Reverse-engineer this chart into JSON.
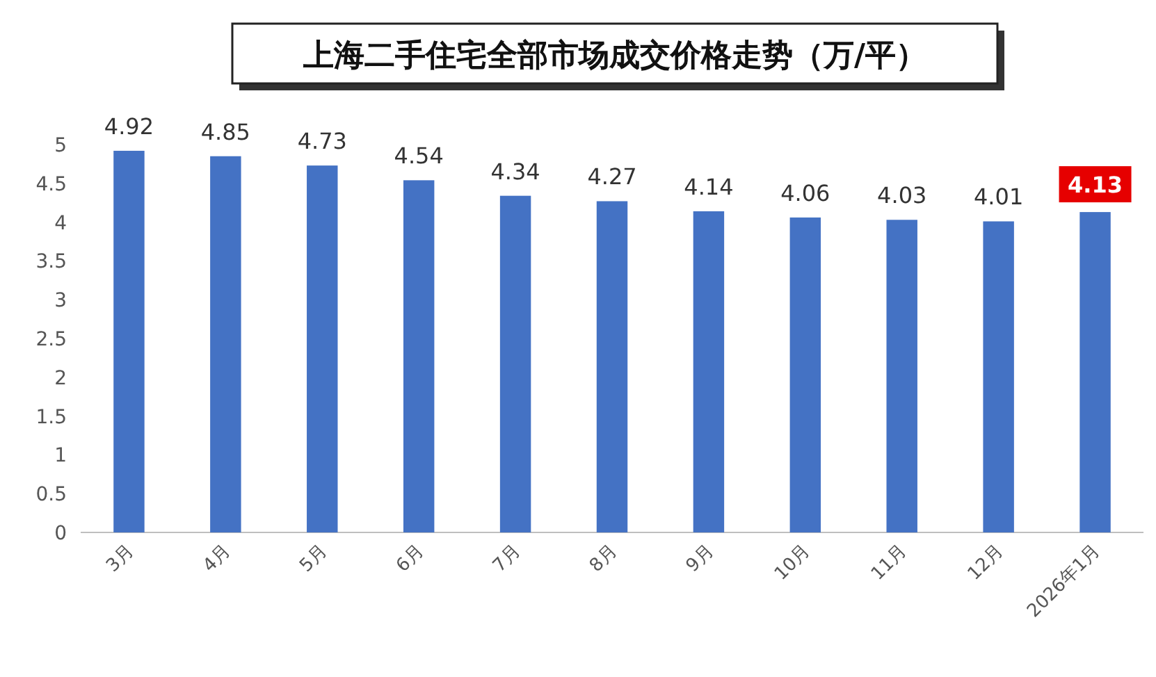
{
  "chart_data": {
    "type": "bar",
    "title": "上海二手住宅全部市场成交价格走势（万/平）",
    "categories": [
      "3月",
      "4月",
      "5月",
      "6月",
      "7月",
      "8月",
      "9月",
      "10月",
      "11月",
      "12月",
      "2026年1月"
    ],
    "values": [
      4.92,
      4.85,
      4.73,
      4.54,
      4.34,
      4.27,
      4.14,
      4.06,
      4.03,
      4.01,
      4.13
    ],
    "color": "#4472c4",
    "ylim": [
      0,
      5
    ],
    "yticks": [
      0,
      0.5,
      1,
      1.5,
      2,
      2.5,
      3,
      3.5,
      4,
      4.5,
      5
    ],
    "data_labels": true,
    "grid": false
  }
}
